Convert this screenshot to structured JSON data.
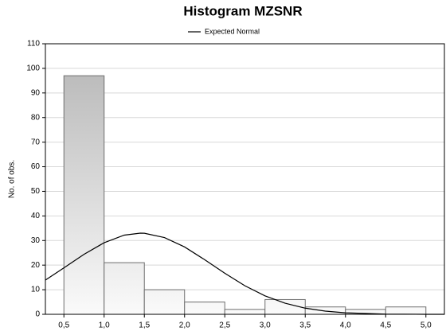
{
  "chart_data": {
    "type": "histogram",
    "title": "Histogram MZSNR",
    "y_label": "No. of obs.",
    "bins": [
      0.5,
      1.0,
      1.5,
      2.0,
      2.5,
      3.0,
      3.5,
      4.0,
      4.5,
      5.0
    ],
    "values": [
      97,
      21,
      10,
      5,
      2,
      6,
      3,
      2,
      3
    ],
    "color": "#c4c4c4",
    "xlim": [
      0.27,
      5.23
    ],
    "ylim": [
      0,
      110
    ],
    "xticks": [
      {
        "value": 0.5,
        "label": "0,5"
      },
      {
        "value": 1.0,
        "label": "1,0"
      },
      {
        "value": 1.5,
        "label": "1,5"
      },
      {
        "value": 2.0,
        "label": "2,0"
      },
      {
        "value": 2.5,
        "label": "2,5"
      },
      {
        "value": 3.0,
        "label": "3,0"
      },
      {
        "value": 3.5,
        "label": "3,5"
      },
      {
        "value": 4.0,
        "label": "4,0"
      },
      {
        "value": 4.5,
        "label": "4,5"
      },
      {
        "value": 5.0,
        "label": "5,0"
      }
    ],
    "yticks": [
      0,
      10,
      20,
      30,
      40,
      50,
      60,
      70,
      80,
      90,
      100,
      110
    ],
    "grid": true,
    "legend": "top",
    "series": [
      {
        "name": "Expected Normal",
        "type": "line",
        "color": "#000000",
        "x": [
          0.27,
          0.5,
          0.75,
          1.0,
          1.25,
          1.45,
          1.5,
          1.75,
          2.0,
          2.25,
          2.5,
          2.75,
          3.0,
          3.25,
          3.5,
          3.75,
          4.0,
          4.5,
          5.0,
          5.23
        ],
        "values": [
          13.9,
          18.9,
          24.4,
          29.1,
          32.2,
          33,
          32.95,
          31.2,
          27.4,
          22.2,
          16.7,
          11.6,
          7.5,
          4.5,
          2.5,
          1.3,
          0.6,
          0.1,
          0,
          0
        ]
      }
    ]
  }
}
